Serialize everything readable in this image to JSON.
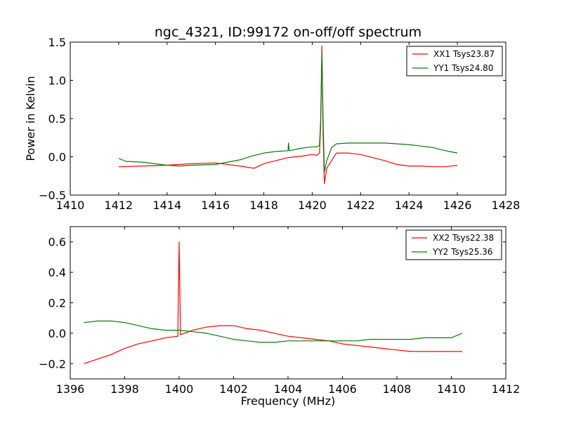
{
  "chart_data": [
    {
      "type": "line",
      "title": "ngc_4321, ID:99172 on-off/off spectrum",
      "xlabel": "",
      "ylabel": "Power in Kelvin",
      "xlim": [
        1410,
        1428
      ],
      "ylim": [
        -0.5,
        1.5
      ],
      "xticks": [
        1410,
        1412,
        1414,
        1416,
        1418,
        1420,
        1422,
        1424,
        1426,
        1428
      ],
      "yticks": [
        -0.5,
        0.0,
        0.5,
        1.0,
        1.5
      ],
      "xtick_labels": [
        "1410",
        "1412",
        "1414",
        "1416",
        "1418",
        "1420",
        "1422",
        "1424",
        "1426",
        "1428"
      ],
      "ytick_labels": [
        "−0.5",
        "0.0",
        "0.5",
        "1.0",
        "1.5"
      ],
      "grid": false,
      "legend_position": "top-right",
      "series": [
        {
          "name": "XX1 Tsys23.87",
          "color": "#ff0000",
          "x": [
            1412,
            1413,
            1414,
            1415,
            1416,
            1417,
            1417.6,
            1418,
            1418.5,
            1419,
            1419.6,
            1420,
            1420.2,
            1420.3,
            1420.35,
            1420.4,
            1420.45,
            1420.5,
            1420.6,
            1420.8,
            1421,
            1421.5,
            1422,
            1422.5,
            1423,
            1423.5,
            1424,
            1424.5,
            1425,
            1425.5,
            1426
          ],
          "y": [
            -0.13,
            -0.12,
            -0.11,
            -0.09,
            -0.08,
            -0.12,
            -0.15,
            -0.09,
            -0.05,
            -0.01,
            0.01,
            0.03,
            0.02,
            0.05,
            0.4,
            1.45,
            0.3,
            -0.35,
            -0.15,
            -0.05,
            0.05,
            0.05,
            0.03,
            -0.01,
            -0.05,
            -0.1,
            -0.12,
            -0.12,
            -0.13,
            -0.13,
            -0.11
          ]
        },
        {
          "name": "YY1 Tsys24.80",
          "color": "#008000",
          "x": [
            1412,
            1412.3,
            1413,
            1414,
            1414.5,
            1415,
            1416,
            1417,
            1417.5,
            1418,
            1418.5,
            1419,
            1419.02,
            1419.05,
            1419.5,
            1420,
            1420.2,
            1420.3,
            1420.35,
            1420.4,
            1420.45,
            1420.5,
            1420.6,
            1420.8,
            1421,
            1421.5,
            1422,
            1422.5,
            1423,
            1424,
            1424.5,
            1425,
            1425.5,
            1426
          ],
          "y": [
            -0.02,
            -0.06,
            -0.07,
            -0.11,
            -0.12,
            -0.11,
            -0.1,
            -0.04,
            0.01,
            0.05,
            0.07,
            0.08,
            0.18,
            0.08,
            0.11,
            0.13,
            0.13,
            0.15,
            0.5,
            1.38,
            0.5,
            -0.2,
            -0.05,
            0.12,
            0.17,
            0.18,
            0.18,
            0.18,
            0.18,
            0.16,
            0.14,
            0.12,
            0.08,
            0.05
          ]
        }
      ]
    },
    {
      "type": "line",
      "title": "",
      "xlabel": "Frequency (MHz)",
      "ylabel": "",
      "xlim": [
        1396,
        1412
      ],
      "ylim": [
        -0.3,
        0.7
      ],
      "xticks": [
        1396,
        1398,
        1400,
        1402,
        1404,
        1406,
        1408,
        1410,
        1412
      ],
      "yticks": [
        -0.2,
        0.0,
        0.2,
        0.4,
        0.6
      ],
      "xtick_labels": [
        "1396",
        "1398",
        "1400",
        "1402",
        "1404",
        "1406",
        "1408",
        "1410",
        "1412"
      ],
      "ytick_labels": [
        "−0.2",
        "0.0",
        "0.2",
        "0.4",
        "0.6"
      ],
      "grid": false,
      "legend_position": "top-right",
      "series": [
        {
          "name": "XX2 Tsys22.38",
          "color": "#ff0000",
          "x": [
            1396.5,
            1397,
            1397.5,
            1398,
            1398.5,
            1399,
            1399.5,
            1399.95,
            1400,
            1400.05,
            1400.5,
            1401,
            1401.5,
            1402,
            1402.5,
            1403,
            1403.5,
            1404,
            1404.5,
            1405,
            1405.5,
            1406,
            1406.5,
            1407,
            1407.5,
            1408,
            1408.5,
            1409,
            1409.5,
            1410,
            1410.4
          ],
          "y": [
            -0.2,
            -0.17,
            -0.14,
            -0.1,
            -0.07,
            -0.05,
            -0.03,
            -0.02,
            0.6,
            -0.01,
            0.02,
            0.04,
            0.05,
            0.05,
            0.03,
            0.02,
            0.0,
            -0.02,
            -0.03,
            -0.04,
            -0.05,
            -0.07,
            -0.08,
            -0.09,
            -0.1,
            -0.11,
            -0.12,
            -0.12,
            -0.12,
            -0.12,
            -0.12
          ]
        },
        {
          "name": "YY2 Tsys25.36",
          "color": "#008000",
          "x": [
            1396.5,
            1397,
            1397.5,
            1398,
            1398.5,
            1399,
            1399.5,
            1400,
            1400.5,
            1401,
            1401.5,
            1402,
            1402.5,
            1403,
            1403.5,
            1404,
            1404.5,
            1405,
            1405.5,
            1406,
            1406.5,
            1407,
            1407.5,
            1408,
            1408.5,
            1409,
            1409.5,
            1410,
            1410.4
          ],
          "y": [
            0.07,
            0.08,
            0.08,
            0.07,
            0.05,
            0.03,
            0.02,
            0.02,
            0.01,
            0.0,
            -0.02,
            -0.04,
            -0.05,
            -0.06,
            -0.06,
            -0.05,
            -0.05,
            -0.05,
            -0.05,
            -0.05,
            -0.05,
            -0.04,
            -0.04,
            -0.04,
            -0.04,
            -0.03,
            -0.03,
            -0.03,
            0.0
          ]
        }
      ]
    }
  ]
}
